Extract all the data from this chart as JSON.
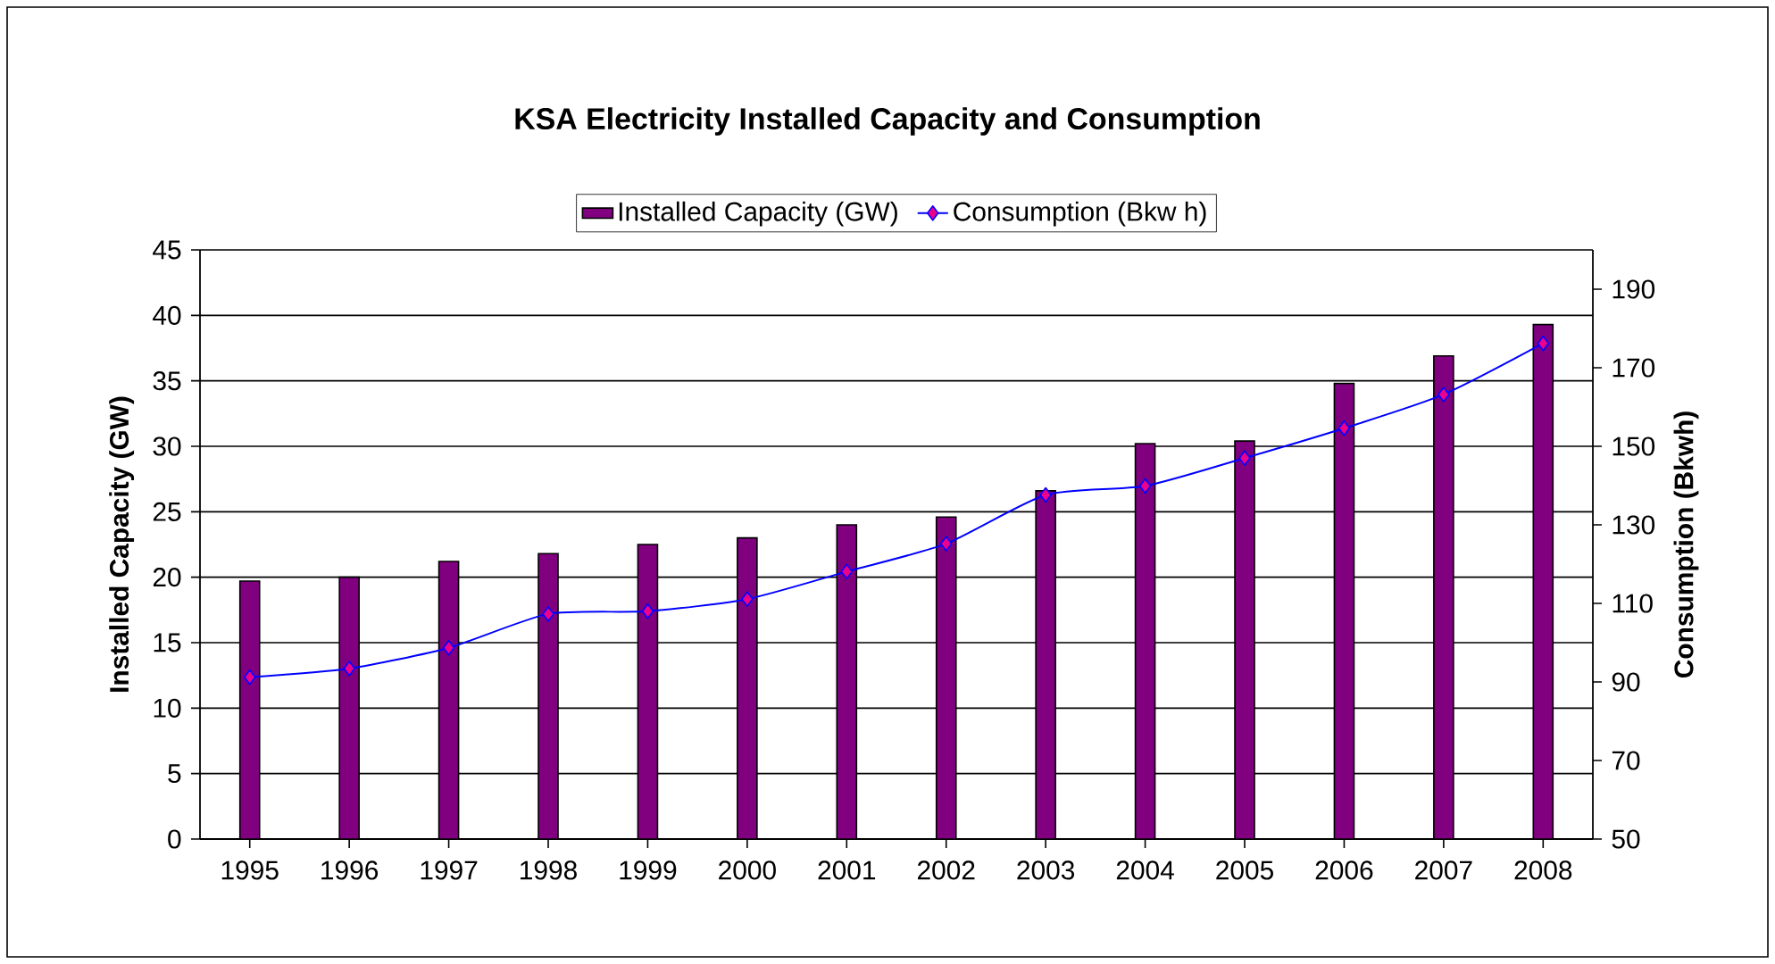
{
  "chart_data": {
    "type": "bar",
    "title": "KSA Electricity Installed Capacity and Consumption",
    "categories": [
      "1995",
      "1996",
      "1997",
      "1998",
      "1999",
      "2000",
      "2001",
      "2002",
      "2003",
      "2004",
      "2005",
      "2006",
      "2007",
      "2008"
    ],
    "series": [
      {
        "name": "Installed Capacity (GW)",
        "color": "#800080",
        "values": [
          19.7,
          20.0,
          21.2,
          21.8,
          22.5,
          23.0,
          24.0,
          24.6,
          26.6,
          30.2,
          30.4,
          34.8,
          36.9,
          39.3
        ]
      },
      {
        "name": "Consumption (Bkw h)",
        "type": "line",
        "axis": "y2",
        "color": "#0000ff",
        "marker": "diamond",
        "values": [
          91.2,
          93.4,
          98.7,
          107.3,
          108.0,
          111.1,
          118.1,
          125.2,
          137.6,
          139.9,
          147.0,
          154.6,
          163.2,
          176.2
        ]
      }
    ],
    "ylabel": "Installed Capacity (GW)",
    "y2label": "Consumption (Bkwh)",
    "ylim": [
      0,
      45
    ],
    "yticks": [
      0,
      5,
      10,
      15,
      20,
      25,
      30,
      35,
      40,
      45
    ],
    "y2lim": [
      50,
      200
    ],
    "y2ticks": [
      50,
      70,
      90,
      110,
      130,
      150,
      170,
      190
    ],
    "grid": "y",
    "legend": "top"
  }
}
